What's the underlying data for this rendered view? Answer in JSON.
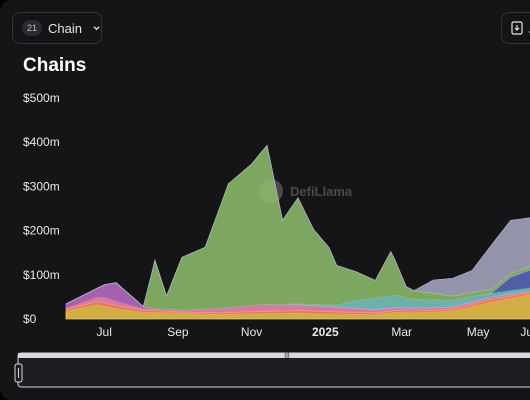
{
  "controls": {
    "chain_count": "21",
    "chain_label": "Chain",
    "export_label": "↓"
  },
  "title": "Chains",
  "watermark": "DefiLlama",
  "chart_data": {
    "type": "area",
    "stacked": true,
    "y_ticks": [
      "$0",
      "$100m",
      "$200m",
      "$300m",
      "$400m",
      "$500m"
    ],
    "ylim": [
      0,
      500
    ],
    "y_unit": "$m",
    "x_ticks": [
      "Jul",
      "Sep",
      "Nov",
      "2025",
      "Mar",
      "May",
      "Jun"
    ],
    "x_range": [
      0,
      12
    ],
    "grid": false,
    "series": [
      {
        "color": "#f2c94c",
        "x": [
          0,
          0.8,
          1.4,
          2,
          2.6,
          3.2,
          4,
          5,
          6,
          7,
          8,
          8.5,
          9,
          10,
          11,
          12
        ],
        "values": [
          18,
          32,
          22,
          15,
          14,
          12,
          10,
          12,
          13,
          11,
          10,
          15,
          14,
          18,
          38,
          55
        ]
      },
      {
        "color": "#ff8f6b",
        "x": [
          0,
          1,
          2,
          3,
          4,
          5,
          6,
          7,
          8,
          9,
          10,
          11,
          12
        ],
        "values": [
          4,
          8,
          5,
          3,
          4,
          5,
          6,
          5,
          4,
          4,
          4,
          6,
          4
        ]
      },
      {
        "color": "#f48fb1",
        "x": [
          0,
          1,
          2,
          3,
          4,
          5,
          6,
          7,
          8,
          9,
          10,
          11,
          12
        ],
        "values": [
          2,
          12,
          3,
          3,
          9,
          14,
          12,
          10,
          6,
          5,
          4,
          4,
          3
        ]
      },
      {
        "color": "#c06fc9",
        "x": [
          0,
          0.8,
          1.3,
          2,
          2.2,
          3,
          4,
          5,
          6,
          7,
          8,
          9,
          10,
          11,
          12
        ],
        "values": [
          10,
          20,
          42,
          5,
          1,
          1,
          1,
          1,
          1,
          1,
          1,
          1,
          1,
          1,
          1
        ]
      },
      {
        "color": "#80cbc4",
        "x": [
          0,
          4,
          5,
          6,
          6.5,
          7,
          7.5,
          8,
          8.5,
          9,
          10,
          11,
          12
        ],
        "values": [
          0,
          0,
          0,
          2,
          3,
          4,
          18,
          26,
          28,
          20,
          15,
          10,
          8
        ]
      },
      {
        "color": "#5c6bc0",
        "x": [
          0,
          11,
          11.5,
          12
        ],
        "values": [
          0,
          0,
          30,
          40
        ]
      },
      {
        "color": "#8fbf6f",
        "x": [
          0,
          2,
          2.3,
          2.6,
          3,
          3.6,
          4.2,
          4.8,
          5.2,
          5.6,
          6,
          6.4,
          6.8,
          7,
          7.4,
          8,
          8.4,
          8.8,
          9,
          9.5,
          10,
          11,
          12
        ],
        "values": [
          0,
          0,
          110,
          30,
          120,
          140,
          280,
          320,
          360,
          190,
          240,
          170,
          130,
          90,
          70,
          40,
          100,
          25,
          20,
          15,
          10,
          8,
          8
        ]
      },
      {
        "color": "#a9a9c4",
        "x": [
          0,
          9,
          9.5,
          10,
          10.5,
          11,
          11.5,
          12
        ],
        "values": [
          0,
          0,
          30,
          40,
          50,
          100,
          120,
          110
        ]
      }
    ]
  }
}
